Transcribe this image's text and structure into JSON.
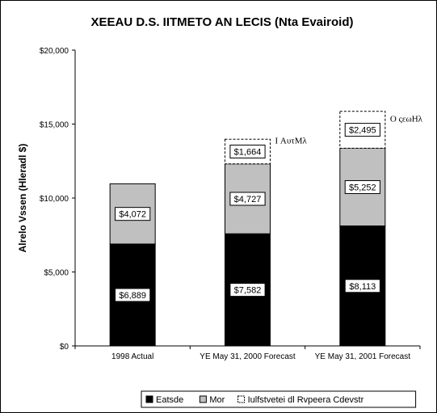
{
  "chart_data": {
    "type": "bar",
    "stacked": true,
    "title": "XEEAU D.S. IITMETO AN LECIS (Nta Evairoid)",
    "ylabel": "Alrelo Vssen (Hleradl $)",
    "ylim": [
      0,
      20000
    ],
    "yticks": [
      "$0",
      "$5,000",
      "$10,000",
      "$15,000",
      "$20,000"
    ],
    "ytick_values": [
      0,
      5000,
      10000,
      15000,
      20000
    ],
    "categories": [
      "1998 Actual",
      "YE May 31, 2000 Forecast",
      "YE May 31, 2001 Forecast"
    ],
    "series": [
      {
        "name": "Eatsde",
        "color": "#000000",
        "values": [
          6889,
          7582,
          8113
        ],
        "labels": [
          "$6,889",
          "$7,582",
          "$8,113"
        ]
      },
      {
        "name": "Mor",
        "color": "#c0c0c0",
        "values": [
          4072,
          4727,
          5252
        ],
        "labels": [
          "$4,072",
          "$4,727",
          "$5,252"
        ]
      },
      {
        "name": "Iulfstvetei dl Rvpeera Cdevstr",
        "color": "#ffffff",
        "dashed": true,
        "values": [
          0,
          1664,
          2495
        ],
        "labels": [
          "",
          "$1,664",
          "$2,495"
        ]
      }
    ],
    "annotations": [
      {
        "category_index": 1,
        "text": "I ΑυτΜλ"
      },
      {
        "category_index": 2,
        "text": "Ο ςεωΗλ"
      }
    ],
    "grid": false,
    "legend_position": "bottom"
  }
}
